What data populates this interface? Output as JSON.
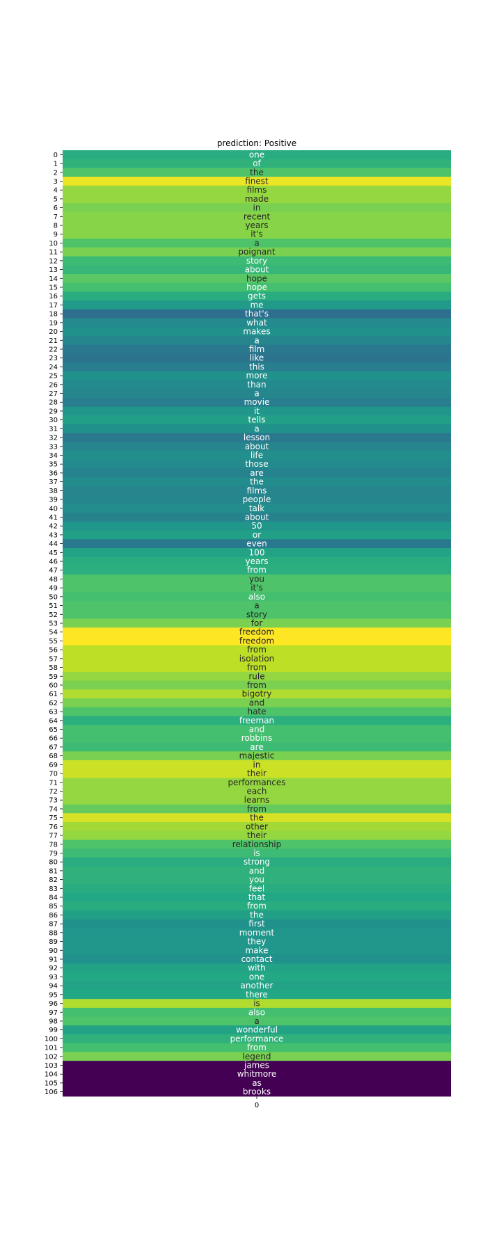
{
  "chart_data": {
    "type": "heatmap",
    "title": "prediction: Positive",
    "x_tick_labels": [
      "0"
    ],
    "y_tick_labels": [
      "0",
      "1",
      "2",
      "3",
      "4",
      "5",
      "6",
      "7",
      "8",
      "9",
      "10",
      "11",
      "12",
      "13",
      "14",
      "15",
      "16",
      "17",
      "18",
      "19",
      "20",
      "21",
      "22",
      "23",
      "24",
      "25",
      "26",
      "27",
      "28",
      "29",
      "30",
      "31",
      "32",
      "33",
      "34",
      "35",
      "36",
      "37",
      "38",
      "39",
      "40",
      "41",
      "42",
      "43",
      "44",
      "45",
      "46",
      "47",
      "48",
      "49",
      "50",
      "51",
      "52",
      "53",
      "54",
      "55",
      "56",
      "57",
      "58",
      "59",
      "60",
      "61",
      "62",
      "63",
      "64",
      "65",
      "66",
      "67",
      "68",
      "69",
      "70",
      "71",
      "72",
      "73",
      "74",
      "75",
      "76",
      "77",
      "78",
      "79",
      "80",
      "81",
      "82",
      "83",
      "84",
      "85",
      "86",
      "87",
      "88",
      "89",
      "90",
      "91",
      "92",
      "93",
      "94",
      "95",
      "96",
      "97",
      "98",
      "99",
      "100",
      "101",
      "102",
      "103",
      "104",
      "105",
      "106"
    ],
    "colormap": "viridis",
    "tokens": [
      "one",
      "of",
      "the",
      "finest",
      "films",
      "made",
      "in",
      "recent",
      "years",
      "it's",
      "a",
      "poignant",
      "story",
      "about",
      "hope",
      "hope",
      "gets",
      "me",
      "that's",
      "what",
      "makes",
      "a",
      "film",
      "like",
      "this",
      "more",
      "than",
      "a",
      "movie",
      "it",
      "tells",
      "a",
      "lesson",
      "about",
      "life",
      "those",
      "are",
      "the",
      "films",
      "people",
      "talk",
      "about",
      "50",
      "or",
      "even",
      "100",
      "years",
      "from",
      "you",
      "it's",
      "also",
      "a",
      "story",
      "for",
      "freedom",
      "freedom",
      "from",
      "isolation",
      "from",
      "rule",
      "from",
      "bigotry",
      "and",
      "hate",
      "freeman",
      "and",
      "robbins",
      "are",
      "majestic",
      "in",
      "their",
      "performances",
      "each",
      "learns",
      "from",
      "the",
      "other",
      "their",
      "relationship",
      "is",
      "strong",
      "and",
      "you",
      "feel",
      "that",
      "from",
      "the",
      "first",
      "moment",
      "they",
      "make",
      "contact",
      "with",
      "one",
      "another",
      "there",
      "is",
      "also",
      "a",
      "wonderful",
      "performance",
      "from",
      "legend",
      "james",
      "whitmore",
      "as",
      "brooks"
    ],
    "values": [
      0.62,
      0.64,
      0.72,
      0.97,
      0.84,
      0.84,
      0.8,
      0.82,
      0.82,
      0.82,
      0.72,
      0.8,
      0.68,
      0.66,
      0.74,
      0.7,
      0.62,
      0.54,
      0.36,
      0.47,
      0.5,
      0.46,
      0.4,
      0.38,
      0.42,
      0.5,
      0.47,
      0.46,
      0.42,
      0.52,
      0.56,
      0.5,
      0.4,
      0.45,
      0.49,
      0.47,
      0.44,
      0.48,
      0.45,
      0.46,
      0.48,
      0.44,
      0.52,
      0.56,
      0.4,
      0.58,
      0.62,
      0.63,
      0.72,
      0.72,
      0.7,
      0.72,
      0.72,
      0.8,
      1.0,
      1.0,
      0.9,
      0.9,
      0.9,
      0.84,
      0.8,
      0.88,
      0.8,
      0.72,
      0.63,
      0.7,
      0.7,
      0.68,
      0.8,
      0.92,
      0.92,
      0.84,
      0.84,
      0.84,
      0.76,
      0.94,
      0.86,
      0.84,
      0.72,
      0.68,
      0.62,
      0.64,
      0.64,
      0.62,
      0.6,
      0.62,
      0.56,
      0.5,
      0.52,
      0.52,
      0.52,
      0.5,
      0.58,
      0.6,
      0.58,
      0.6,
      0.88,
      0.7,
      0.72,
      0.58,
      0.64,
      0.7,
      0.8,
      0.0,
      0.0,
      0.0,
      0.0
    ]
  }
}
